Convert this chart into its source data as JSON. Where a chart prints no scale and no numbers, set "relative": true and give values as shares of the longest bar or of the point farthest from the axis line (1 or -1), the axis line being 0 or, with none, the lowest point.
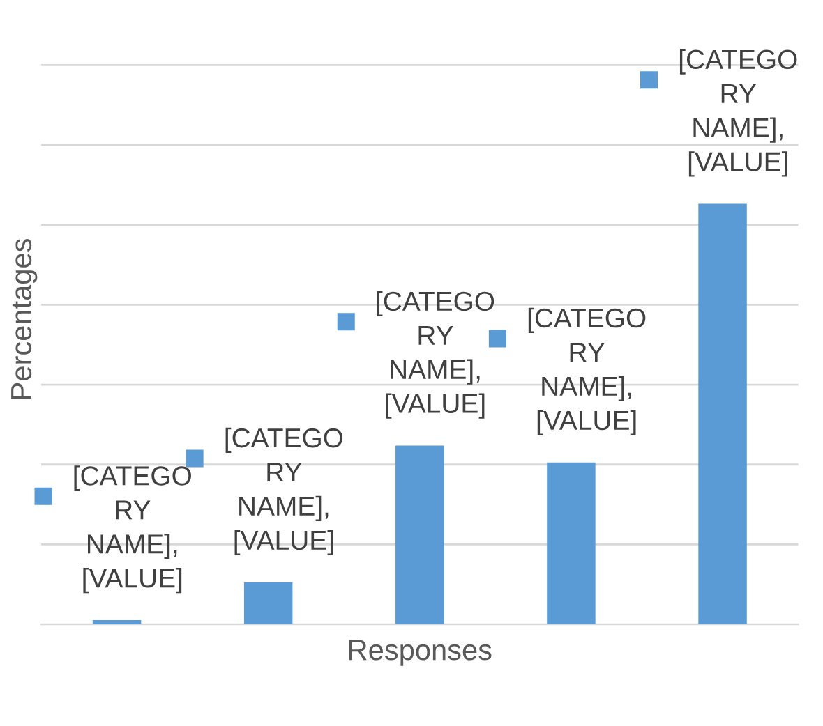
{
  "chart_data": {
    "type": "bar",
    "xlabel": "Responses",
    "ylabel": "Percentages",
    "relative": true,
    "grid": "y",
    "categories": [
      null,
      null,
      null,
      null,
      null
    ],
    "series": [
      {
        "color": "#5b9bd5",
        "values": [
          0.01,
          0.1,
          0.425,
          0.385,
          1.0
        ]
      }
    ],
    "value_labels": [
      "[CATEGO\nRY\nNAME],\n[VALUE]",
      "[CATEGO\nRY\nNAME],\n[VALUE]",
      "[CATEGO\nRY\nNAME],\n[VALUE]",
      "[CATEGO\nRY\nNAME],\n[VALUE]",
      "[CATEGO\nRY\nNAME],\n[VALUE]"
    ]
  }
}
